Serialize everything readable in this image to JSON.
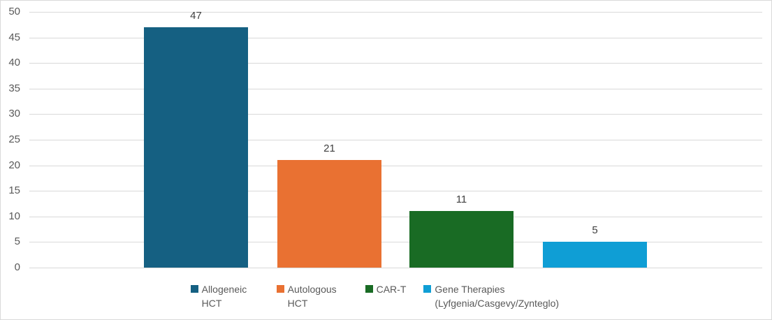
{
  "chart_data": {
    "type": "bar",
    "title": "",
    "xlabel": "",
    "ylabel": "",
    "categories": [
      "Allogeneic HCT",
      "Autologous HCT",
      "CAR-T",
      "Gene Therapies (Lyfgenia/Casgevy/Zynteglo)"
    ],
    "values": [
      47,
      21,
      11,
      5
    ],
    "data_labels": [
      "47",
      "21",
      "11",
      "5"
    ],
    "series_colors": [
      "#156082",
      "#E97132",
      "#196B24",
      "#0F9ED5"
    ],
    "ylim": [
      0,
      50
    ],
    "yticks": [
      0,
      5,
      10,
      15,
      20,
      25,
      30,
      35,
      40,
      45,
      50
    ],
    "grid": true,
    "legend_position": "bottom"
  },
  "colors": {
    "background": "#FFFFFF",
    "gridline": "#D9D9D9",
    "chart_border": "#D9D9D9",
    "tick_text": "#595959",
    "data_label_text": "#404040",
    "legend_text": "#595959"
  }
}
